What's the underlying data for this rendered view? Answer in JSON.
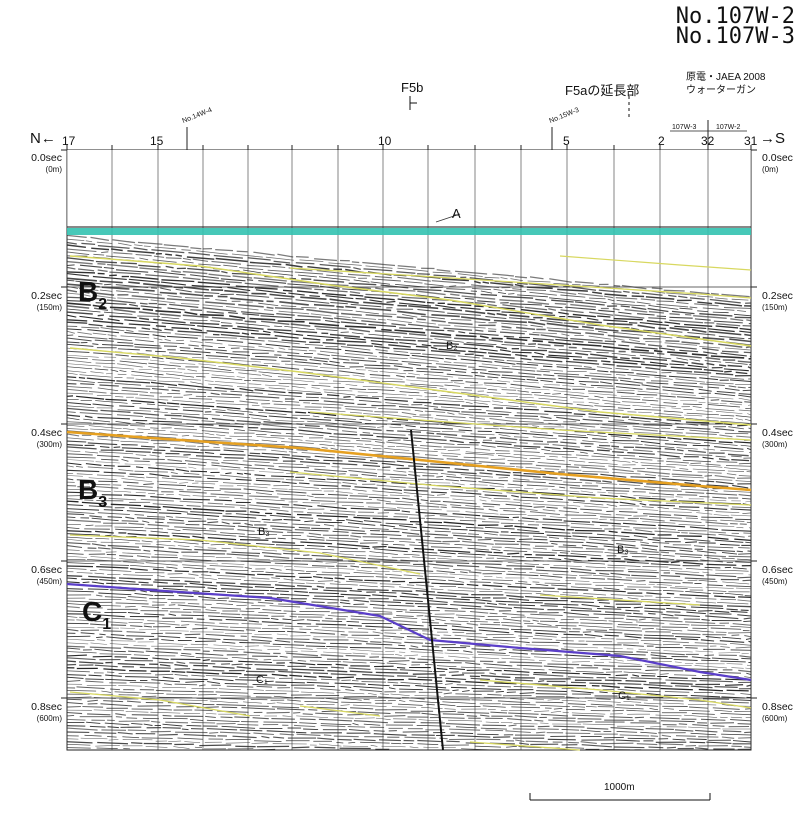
{
  "header": {
    "line_title_1": "No.107W-2",
    "line_title_2": "No.107W-3",
    "source_line_1": "原電・JAEA 2008",
    "source_line_2": "ウォーターガン",
    "fault_f5b": "F5b",
    "fault_f5a_extension": "F5aの延長部",
    "north_arrow": "N←",
    "south_arrow": "→S"
  },
  "shotpoints": [
    "17",
    "15",
    "10",
    "5",
    "2",
    "32",
    "31"
  ],
  "crossing_lines": {
    "line_14": "No.14W-4",
    "line_15": "No.15W-3",
    "line_107w3": "107W-3",
    "line_107w2": "107W-2"
  },
  "time_axis": [
    {
      "time": "0.0sec",
      "depth": "(0m)"
    },
    {
      "time": "0.2sec",
      "depth": "(150m)"
    },
    {
      "time": "0.4sec",
      "depth": "(300m)"
    },
    {
      "time": "0.6sec",
      "depth": "(450m)"
    },
    {
      "time": "0.8sec",
      "depth": "(600m)"
    }
  ],
  "units": [
    {
      "letter": "B",
      "sub": "2"
    },
    {
      "letter": "B",
      "sub": "3"
    },
    {
      "letter": "C",
      "sub": "1"
    }
  ],
  "reflector_labels": {
    "a": "A",
    "b2": "B₂",
    "b3_left": "B₃",
    "b3_right": "B₃",
    "c1_left": "C₁",
    "c1_right": "C₁"
  },
  "scale_bar": "1000m",
  "colors": {
    "seafloor": "#33c2b0",
    "horizon_orange": "#e6a020",
    "horizon_yellow": "#d8d860",
    "horizon_purple": "#5a3ec8",
    "fault": "#111111",
    "reflections": "#1a1a1a"
  }
}
